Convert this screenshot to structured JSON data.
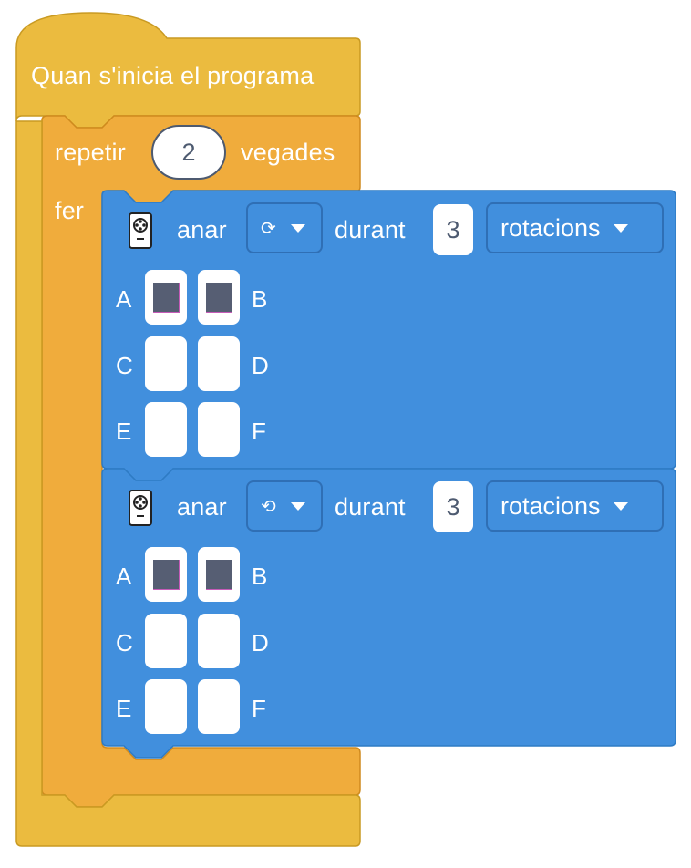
{
  "colors": {
    "event_block": "#ebbb3f",
    "loop_block": "#f0ac3c",
    "move_block": "#418fdd",
    "motor_on": "#565e73"
  },
  "event_block": {
    "label": "Quan s'inicia el programa"
  },
  "repeat_block": {
    "label_before": "repetir",
    "count": "2",
    "label_after": "vegades",
    "do_label": "fer"
  },
  "move_blocks": [
    {
      "robot_icon": "robot-remote-icon",
      "verb": "anar",
      "direction_icon": "rotate-clockwise-icon",
      "direction_glyph": "⟳",
      "during": "durant",
      "amount": "3",
      "unit": "rotacions",
      "motors": [
        {
          "left_label": "A",
          "left_on": true,
          "right_label": "B",
          "right_on": true
        },
        {
          "left_label": "C",
          "left_on": false,
          "right_label": "D",
          "right_on": false
        },
        {
          "left_label": "E",
          "left_on": false,
          "right_label": "F",
          "right_on": false
        }
      ]
    },
    {
      "robot_icon": "robot-remote-icon",
      "verb": "anar",
      "direction_icon": "rotate-counterclockwise-icon",
      "direction_glyph": "⟲",
      "during": "durant",
      "amount": "3",
      "unit": "rotacions",
      "motors": [
        {
          "left_label": "A",
          "left_on": true,
          "right_label": "B",
          "right_on": true
        },
        {
          "left_label": "C",
          "left_on": false,
          "right_label": "D",
          "right_on": false
        },
        {
          "left_label": "E",
          "left_on": false,
          "right_label": "F",
          "right_on": false
        }
      ]
    }
  ]
}
